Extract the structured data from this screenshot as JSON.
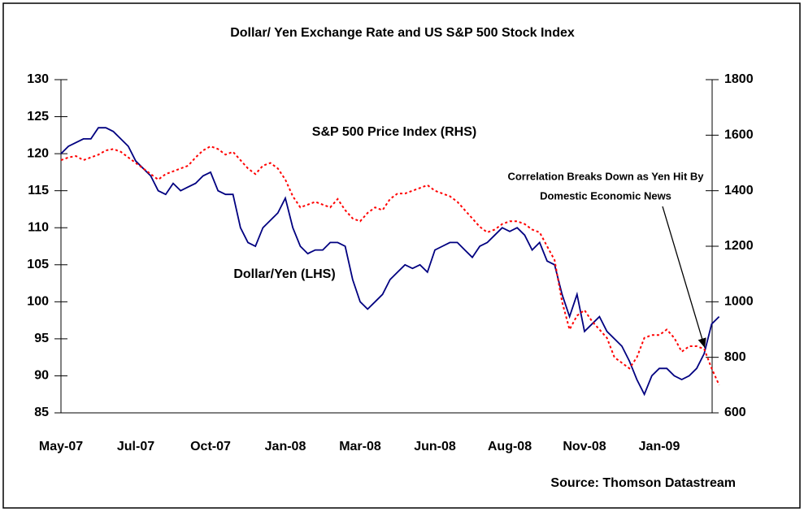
{
  "chart_data": {
    "type": "line",
    "title": "Dollar/ Yen Exchange Rate and US S&P 500 Stock Index",
    "source": "Source: Thomson Datastream",
    "annotations": [
      "S&P 500 Price Index (RHS)",
      "Dollar/Yen (LHS)",
      "Correlation Breaks Down as Yen Hit By",
      "Domestic Economic News"
    ],
    "categories": [
      "May-07",
      null,
      null,
      null,
      null,
      null,
      null,
      null,
      null,
      null,
      "Jul-07",
      null,
      null,
      null,
      null,
      null,
      null,
      null,
      null,
      null,
      "Oct-07",
      null,
      null,
      null,
      null,
      null,
      null,
      null,
      null,
      null,
      "Jan-08",
      null,
      null,
      null,
      null,
      null,
      null,
      null,
      null,
      null,
      "Mar-08",
      null,
      null,
      null,
      null,
      null,
      null,
      null,
      null,
      null,
      "Jun-08",
      null,
      null,
      null,
      null,
      null,
      null,
      null,
      null,
      null,
      "Aug-08",
      null,
      null,
      null,
      null,
      null,
      null,
      null,
      null,
      null,
      "Nov-08",
      null,
      null,
      null,
      null,
      null,
      null,
      null,
      null,
      null,
      "Jan-09",
      null,
      null,
      null,
      null,
      null,
      null,
      null,
      null
    ],
    "series": [
      {
        "name": "Dollar/Yen (LHS)",
        "color": "#000080",
        "axis": "y",
        "values": [
          120,
          121,
          121.5,
          122,
          122,
          123.5,
          123.5,
          123,
          122,
          121,
          119,
          118,
          117,
          115,
          114.5,
          116,
          115,
          115.5,
          116,
          117,
          117.5,
          115,
          114.5,
          114.5,
          110,
          108,
          107.5,
          110,
          111,
          112,
          114,
          110,
          107.5,
          106.5,
          107,
          107,
          108,
          108,
          107.5,
          103,
          100,
          99,
          100,
          101,
          103,
          104,
          105,
          104.5,
          105,
          104,
          107,
          107.5,
          108,
          108,
          107,
          106,
          107.5,
          108,
          109,
          110,
          109.5,
          110,
          109,
          107,
          108,
          105.5,
          105,
          101,
          98,
          101,
          96,
          97,
          98,
          96,
          95,
          94,
          92,
          89.5,
          87.5,
          90,
          91,
          91,
          90,
          89.5,
          90,
          91,
          93,
          97,
          98
        ]
      },
      {
        "name": "S&P 500 Price Index (RHS)",
        "color": "#ff0000",
        "axis": "y2",
        "values": [
          1510,
          1520,
          1525,
          1510,
          1520,
          1530,
          1545,
          1550,
          1540,
          1520,
          1500,
          1480,
          1460,
          1440,
          1460,
          1470,
          1480,
          1490,
          1520,
          1545,
          1560,
          1550,
          1530,
          1540,
          1510,
          1480,
          1460,
          1490,
          1500,
          1480,
          1440,
          1380,
          1340,
          1350,
          1360,
          1350,
          1340,
          1370,
          1330,
          1300,
          1290,
          1320,
          1340,
          1330,
          1370,
          1390,
          1390,
          1400,
          1410,
          1420,
          1400,
          1390,
          1380,
          1360,
          1330,
          1300,
          1270,
          1250,
          1260,
          1280,
          1290,
          1290,
          1280,
          1260,
          1250,
          1200,
          1150,
          1000,
          900,
          950,
          970,
          930,
          900,
          870,
          800,
          780,
          760,
          800,
          870,
          880,
          880,
          900,
          870,
          820,
          840,
          840,
          830,
          760,
          700
        ]
      }
    ],
    "ylim": [
      85,
      130
    ],
    "yticks": [
      85,
      90,
      95,
      100,
      105,
      110,
      115,
      120,
      125,
      130
    ],
    "y2lim": [
      600,
      1800
    ],
    "y2ticks": [
      600,
      800,
      1000,
      1200,
      1400,
      1600,
      1800
    ],
    "grid": false
  }
}
